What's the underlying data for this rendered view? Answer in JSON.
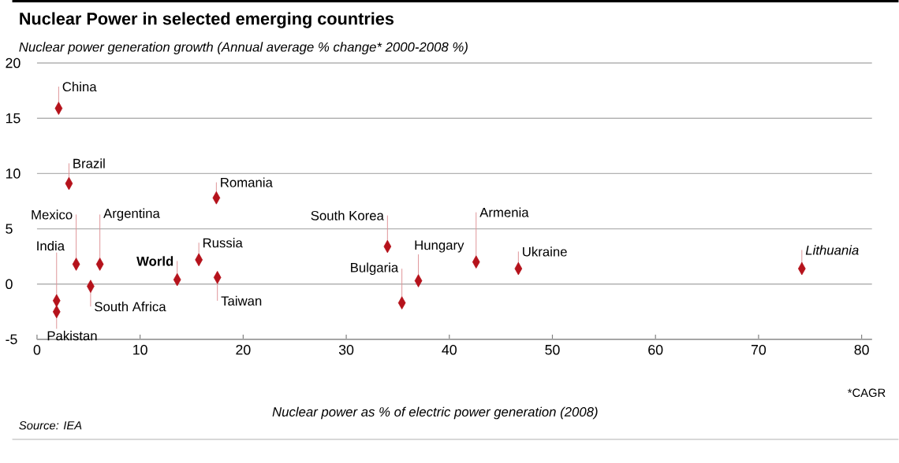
{
  "chart_data": {
    "type": "scatter",
    "title": "Nuclear Power in selected emerging countries",
    "subtitle": "Nuclear power generation growth (Annual average % change* 2000-2008 %)",
    "xlabel": "Nuclear power as % of electric power generation (2008)",
    "x": [
      2.1,
      3.1,
      17.4,
      3.8,
      6.1,
      1.9,
      1.9,
      5.2,
      13.6,
      15.7,
      17.5,
      34.0,
      35.4,
      37.0,
      42.6,
      46.7,
      74.2
    ],
    "values": [
      15.9,
      9.1,
      7.8,
      1.8,
      1.8,
      -1.5,
      -2.5,
      -0.2,
      0.4,
      2.2,
      0.6,
      3.4,
      -1.7,
      0.3,
      2.0,
      1.4,
      1.4
    ],
    "color": "#b5121b",
    "marker": "diamond",
    "xlim": [
      0,
      81
    ],
    "xticks": [
      0,
      10,
      20,
      30,
      40,
      50,
      60,
      70,
      80
    ],
    "ylim": [
      -5,
      20
    ],
    "yticks": [
      -5,
      0,
      5,
      10,
      15,
      20
    ],
    "grid": "y",
    "annotations": [
      {
        "text": "China",
        "x": 2.1,
        "y": 15.9
      },
      {
        "text": "Brazil",
        "x": 3.1,
        "y": 9.1
      },
      {
        "text": "Romania",
        "x": 17.4,
        "y": 7.8
      },
      {
        "text": "Mexico",
        "x": 3.8,
        "y": 1.8
      },
      {
        "text": "Argentina",
        "x": 6.1,
        "y": 1.8
      },
      {
        "text": "India",
        "x": 1.9,
        "y": -1.5
      },
      {
        "text": "Pakistan",
        "x": 1.9,
        "y": -2.5
      },
      {
        "text": "South Africa",
        "x": 5.2,
        "y": -0.2
      },
      {
        "text": "**World**",
        "x": 13.6,
        "y": 0.4
      },
      {
        "text": "Russia",
        "x": 15.7,
        "y": 2.2
      },
      {
        "text": "Taiwan",
        "x": 17.5,
        "y": 0.6
      },
      {
        "text": "South Korea",
        "x": 34.0,
        "y": 3.4
      },
      {
        "text": "Bulgaria",
        "x": 35.4,
        "y": -1.7
      },
      {
        "text": "Hungary",
        "x": 37.0,
        "y": 0.3
      },
      {
        "text": "Armenia",
        "x": 42.6,
        "y": 2.0
      },
      {
        "text": "Ukraine",
        "x": 46.7,
        "y": 1.4
      },
      {
        "text": "*Lithuania*",
        "x": 74.2,
        "y": 1.4
      },
      "*CAGR",
      "Source: IEA"
    ]
  }
}
